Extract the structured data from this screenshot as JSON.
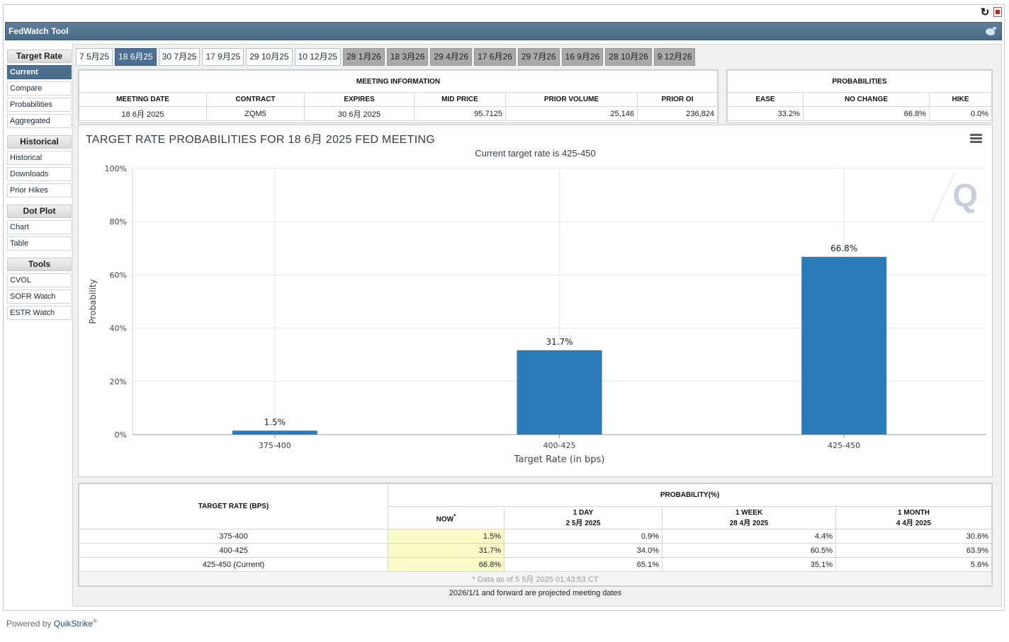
{
  "app": {
    "title": "FedWatch Tool"
  },
  "sidebar": {
    "sections": [
      {
        "title": "Target Rate",
        "items": [
          "Current",
          "Compare",
          "Probabilities",
          "Aggregated"
        ]
      },
      {
        "title": "Historical",
        "items": [
          "Historical",
          "Downloads",
          "Prior Hikes"
        ]
      },
      {
        "title": "Dot Plot",
        "items": [
          "Chart",
          "Table"
        ]
      },
      {
        "title": "Tools",
        "items": [
          "CVOL",
          "SOFR Watch",
          "ESTR Watch"
        ]
      }
    ],
    "active": "Current"
  },
  "tabs": [
    {
      "label": "7 5月25",
      "state": "normal"
    },
    {
      "label": "18 6月25",
      "state": "active"
    },
    {
      "label": "30 7月25",
      "state": "normal"
    },
    {
      "label": "17 9月25",
      "state": "normal"
    },
    {
      "label": "29 10月25",
      "state": "normal"
    },
    {
      "label": "10 12月25",
      "state": "normal"
    },
    {
      "label": "28 1月26",
      "state": "future"
    },
    {
      "label": "18 3月26",
      "state": "future"
    },
    {
      "label": "29 4月26",
      "state": "future"
    },
    {
      "label": "17 6月26",
      "state": "future"
    },
    {
      "label": "29 7月26",
      "state": "future"
    },
    {
      "label": "16 9月26",
      "state": "future"
    },
    {
      "label": "28 10月26",
      "state": "future"
    },
    {
      "label": "9 12月26",
      "state": "future"
    }
  ],
  "meeting_info": {
    "title": "MEETING INFORMATION",
    "headers": [
      "MEETING DATE",
      "CONTRACT",
      "EXPIRES",
      "MID PRICE",
      "PRIOR VOLUME",
      "PRIOR OI"
    ],
    "values": [
      "18 6月 2025",
      "ZQM5",
      "30 6月 2025",
      "95.7125",
      "25,146",
      "236,824"
    ]
  },
  "probabilities": {
    "title": "PROBABILITIES",
    "headers": [
      "EASE",
      "NO CHANGE",
      "HIKE"
    ],
    "values": [
      "33.2%",
      "66.8%",
      "0.0%"
    ]
  },
  "chart_data": {
    "type": "bar",
    "title": "TARGET RATE PROBABILITIES FOR 18 6月 2025 FED MEETING",
    "subtitle": "Current target rate is 425-450",
    "xlabel": "Target Rate (in bps)",
    "ylabel": "Probability",
    "categories": [
      "375-400",
      "400-425",
      "425-450"
    ],
    "values": [
      1.5,
      31.7,
      66.8
    ],
    "value_labels": [
      "1.5%",
      "31.7%",
      "66.8%"
    ],
    "ylim": [
      0,
      100
    ],
    "yticks": [
      "0%",
      "20%",
      "40%",
      "60%",
      "80%",
      "100%"
    ],
    "grid": true,
    "bar_color": "#2b7bb9"
  },
  "prob_table": {
    "col_target": "TARGET RATE (BPS)",
    "col_prob": "PROBABILITY(%)",
    "sub_headers": [
      {
        "line1": "NOW",
        "line2": "",
        "star": "*"
      },
      {
        "line1": "1 DAY",
        "line2": "2 5月 2025",
        "star": ""
      },
      {
        "line1": "1 WEEK",
        "line2": "28 4月 2025",
        "star": ""
      },
      {
        "line1": "1 MONTH",
        "line2": "4 4月 2025",
        "star": ""
      }
    ],
    "rows": [
      {
        "rate": "375-400",
        "values": [
          "1.5%",
          "0.9%",
          "4.4%",
          "30.6%"
        ]
      },
      {
        "rate": "400-425",
        "values": [
          "31.7%",
          "34.0%",
          "60.5%",
          "63.9%"
        ]
      },
      {
        "rate": "425-450 (Current)",
        "values": [
          "66.8%",
          "65.1%",
          "35.1%",
          "5.6%"
        ]
      }
    ],
    "footnote": "* Data as of 5 5月 2025 01:43:53 CT"
  },
  "projected_note": "2026/1/1 and forward are projected meeting dates",
  "footer": {
    "powered_prefix": "Powered by ",
    "powered_brand": "QuikStrike",
    "reg": "®"
  },
  "icons": [
    "refresh-icon",
    "pdf-icon",
    "twitter-icon",
    "menu-icon"
  ]
}
